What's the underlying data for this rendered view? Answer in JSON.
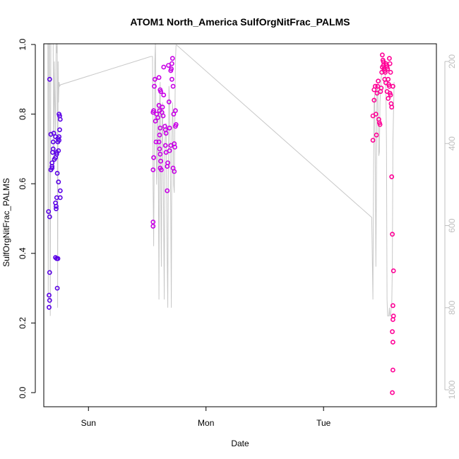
{
  "chart_data": {
    "type": "scatter",
    "title": "ATOM1 North_America SulfOrgNitFrac_PALMS",
    "xlabel": "Date",
    "ylabel": "SulfOrgNitFrac_PALMS",
    "xlim": [
      -0.38,
      2.96
    ],
    "ylim": [
      0,
      1
    ],
    "x_ticks": [
      {
        "value": 0,
        "label": "Sun"
      },
      {
        "value": 1,
        "label": "Mon"
      },
      {
        "value": 2,
        "label": "Tue"
      }
    ],
    "y_ticks": [
      {
        "value": 0,
        "label": "0.0"
      },
      {
        "value": 0.2,
        "label": "0.2"
      },
      {
        "value": 0.4,
        "label": "0.4"
      },
      {
        "value": 0.6,
        "label": "0.6"
      },
      {
        "value": 0.8,
        "label": "0.8"
      },
      {
        "value": 1,
        "label": "1.0"
      }
    ],
    "y2_ticks": [
      {
        "value": 200,
        "label": "200"
      },
      {
        "value": 400,
        "label": "400"
      },
      {
        "value": 600,
        "label": "600"
      },
      {
        "value": 800,
        "label": "800"
      },
      {
        "value": 1000,
        "label": "1000"
      }
    ],
    "y2lim": [
      1032,
      155
    ],
    "grid": false,
    "colors": {
      "early": "#5a00e6",
      "middle": "#c800e6",
      "late": "#ff0096",
      "altitude_line": "#c8c8c8"
    },
    "series": [
      {
        "values": [
          {
            "x": -0.33,
            "y": 0.9
          },
          {
            "x": -0.34,
            "y": 0.52
          },
          {
            "x": -0.33,
            "y": 0.505
          },
          {
            "x": -0.33,
            "y": 0.345
          },
          {
            "x": -0.335,
            "y": 0.28
          },
          {
            "x": -0.33,
            "y": 0.265
          },
          {
            "x": -0.335,
            "y": 0.245
          },
          {
            "x": -0.32,
            "y": 0.742
          },
          {
            "x": -0.31,
            "y": 0.66
          },
          {
            "x": -0.305,
            "y": 0.69
          },
          {
            "x": -0.3,
            "y": 0.7
          },
          {
            "x": -0.3,
            "y": 0.72
          },
          {
            "x": -0.31,
            "y": 0.65
          },
          {
            "x": -0.31,
            "y": 0.645
          },
          {
            "x": -0.32,
            "y": 0.64
          },
          {
            "x": -0.295,
            "y": 0.745
          },
          {
            "x": -0.29,
            "y": 0.67
          },
          {
            "x": -0.28,
            "y": 0.675
          },
          {
            "x": -0.28,
            "y": 0.735
          },
          {
            "x": -0.27,
            "y": 0.685
          },
          {
            "x": -0.27,
            "y": 0.69
          },
          {
            "x": -0.265,
            "y": 0.63
          },
          {
            "x": -0.28,
            "y": 0.545
          },
          {
            "x": -0.275,
            "y": 0.535
          },
          {
            "x": -0.275,
            "y": 0.528
          },
          {
            "x": -0.28,
            "y": 0.388
          },
          {
            "x": -0.27,
            "y": 0.385
          },
          {
            "x": -0.26,
            "y": 0.385
          },
          {
            "x": -0.265,
            "y": 0.3
          },
          {
            "x": -0.27,
            "y": 0.56
          },
          {
            "x": -0.26,
            "y": 0.72
          },
          {
            "x": -0.26,
            "y": 0.73
          },
          {
            "x": -0.255,
            "y": 0.695
          },
          {
            "x": -0.25,
            "y": 0.8
          },
          {
            "x": -0.245,
            "y": 0.795
          },
          {
            "x": -0.24,
            "y": 0.785
          },
          {
            "x": -0.245,
            "y": 0.755
          },
          {
            "x": -0.25,
            "y": 0.735
          },
          {
            "x": -0.25,
            "y": 0.725
          },
          {
            "x": -0.255,
            "y": 0.605
          },
          {
            "x": -0.24,
            "y": 0.58
          },
          {
            "x": -0.24,
            "y": 0.56
          }
        ]
      },
      {
        "values": [
          {
            "x": 0.55,
            "y": 0.49
          },
          {
            "x": 0.55,
            "y": 0.478
          },
          {
            "x": 0.55,
            "y": 0.805
          },
          {
            "x": 0.555,
            "y": 0.81
          },
          {
            "x": 0.56,
            "y": 0.88
          },
          {
            "x": 0.565,
            "y": 0.9
          },
          {
            "x": 0.555,
            "y": 0.675
          },
          {
            "x": 0.55,
            "y": 0.64
          },
          {
            "x": 0.57,
            "y": 0.78
          },
          {
            "x": 0.575,
            "y": 0.72
          },
          {
            "x": 0.58,
            "y": 0.8
          },
          {
            "x": 0.59,
            "y": 0.79
          },
          {
            "x": 0.6,
            "y": 0.905
          },
          {
            "x": 0.6,
            "y": 0.825
          },
          {
            "x": 0.605,
            "y": 0.81
          },
          {
            "x": 0.61,
            "y": 0.87
          },
          {
            "x": 0.615,
            "y": 0.865
          },
          {
            "x": 0.61,
            "y": 0.76
          },
          {
            "x": 0.605,
            "y": 0.74
          },
          {
            "x": 0.6,
            "y": 0.72
          },
          {
            "x": 0.605,
            "y": 0.7
          },
          {
            "x": 0.61,
            "y": 0.685
          },
          {
            "x": 0.615,
            "y": 0.665
          },
          {
            "x": 0.61,
            "y": 0.645
          },
          {
            "x": 0.62,
            "y": 0.64
          },
          {
            "x": 0.625,
            "y": 0.805
          },
          {
            "x": 0.63,
            "y": 0.82
          },
          {
            "x": 0.635,
            "y": 0.795
          },
          {
            "x": 0.64,
            "y": 0.855
          },
          {
            "x": 0.64,
            "y": 0.935
          },
          {
            "x": 0.65,
            "y": 0.765
          },
          {
            "x": 0.655,
            "y": 0.755
          },
          {
            "x": 0.66,
            "y": 0.745
          },
          {
            "x": 0.655,
            "y": 0.71
          },
          {
            "x": 0.66,
            "y": 0.69
          },
          {
            "x": 0.67,
            "y": 0.65
          },
          {
            "x": 0.675,
            "y": 0.66
          },
          {
            "x": 0.67,
            "y": 0.58
          },
          {
            "x": 0.68,
            "y": 0.94
          },
          {
            "x": 0.685,
            "y": 0.835
          },
          {
            "x": 0.69,
            "y": 0.76
          },
          {
            "x": 0.69,
            "y": 0.695
          },
          {
            "x": 0.7,
            "y": 0.71
          },
          {
            "x": 0.7,
            "y": 0.925
          },
          {
            "x": 0.705,
            "y": 0.93
          },
          {
            "x": 0.71,
            "y": 0.945
          },
          {
            "x": 0.715,
            "y": 0.96
          },
          {
            "x": 0.71,
            "y": 0.9
          },
          {
            "x": 0.72,
            "y": 0.88
          },
          {
            "x": 0.725,
            "y": 0.8
          },
          {
            "x": 0.72,
            "y": 0.645
          },
          {
            "x": 0.73,
            "y": 0.635
          },
          {
            "x": 0.73,
            "y": 0.715
          },
          {
            "x": 0.735,
            "y": 0.705
          },
          {
            "x": 0.74,
            "y": 0.765
          },
          {
            "x": 0.745,
            "y": 0.77
          },
          {
            "x": 0.74,
            "y": 0.81
          }
        ]
      },
      {
        "values": [
          {
            "x": 2.42,
            "y": 0.725
          },
          {
            "x": 2.42,
            "y": 0.795
          },
          {
            "x": 2.43,
            "y": 0.84
          },
          {
            "x": 2.43,
            "y": 0.87
          },
          {
            "x": 2.44,
            "y": 0.88
          },
          {
            "x": 2.445,
            "y": 0.8
          },
          {
            "x": 2.45,
            "y": 0.74
          },
          {
            "x": 2.455,
            "y": 0.86
          },
          {
            "x": 2.46,
            "y": 0.88
          },
          {
            "x": 2.465,
            "y": 0.895
          },
          {
            "x": 2.47,
            "y": 0.785
          },
          {
            "x": 2.475,
            "y": 0.775
          },
          {
            "x": 2.48,
            "y": 0.77
          },
          {
            "x": 2.485,
            "y": 0.865
          },
          {
            "x": 2.49,
            "y": 0.875
          },
          {
            "x": 2.495,
            "y": 0.92
          },
          {
            "x": 2.5,
            "y": 0.935
          },
          {
            "x": 2.505,
            "y": 0.955
          },
          {
            "x": 2.51,
            "y": 0.94
          },
          {
            "x": 2.515,
            "y": 0.93
          },
          {
            "x": 2.52,
            "y": 0.925
          },
          {
            "x": 2.525,
            "y": 0.92
          },
          {
            "x": 2.53,
            "y": 0.945
          },
          {
            "x": 2.535,
            "y": 0.94
          },
          {
            "x": 2.54,
            "y": 0.935
          },
          {
            "x": 2.545,
            "y": 0.93
          },
          {
            "x": 2.55,
            "y": 0.9
          },
          {
            "x": 2.555,
            "y": 0.885
          },
          {
            "x": 2.56,
            "y": 0.88
          },
          {
            "x": 2.565,
            "y": 0.86
          },
          {
            "x": 2.57,
            "y": 0.855
          },
          {
            "x": 2.5,
            "y": 0.97
          },
          {
            "x": 2.51,
            "y": 0.95
          },
          {
            "x": 2.52,
            "y": 0.9
          },
          {
            "x": 2.53,
            "y": 0.89
          },
          {
            "x": 2.54,
            "y": 0.865
          },
          {
            "x": 2.55,
            "y": 0.845
          },
          {
            "x": 2.56,
            "y": 0.96
          },
          {
            "x": 2.565,
            "y": 0.945
          },
          {
            "x": 2.57,
            "y": 0.92
          },
          {
            "x": 2.575,
            "y": 0.83
          },
          {
            "x": 2.58,
            "y": 0.82
          },
          {
            "x": 2.59,
            "y": 0.88
          },
          {
            "x": 2.58,
            "y": 0.62
          },
          {
            "x": 2.585,
            "y": 0.455
          },
          {
            "x": 2.595,
            "y": 0.35
          },
          {
            "x": 2.59,
            "y": 0.25
          },
          {
            "x": 2.595,
            "y": 0.22
          },
          {
            "x": 2.59,
            "y": 0.21
          },
          {
            "x": 2.585,
            "y": 0.175
          },
          {
            "x": 2.59,
            "y": 0.145
          },
          {
            "x": 2.59,
            "y": 0.065
          },
          {
            "x": 2.585,
            "y": 0.0
          }
        ]
      }
    ],
    "altitude_trace": [
      {
        "x": -0.38,
        "alt": 155
      },
      {
        "x": -0.345,
        "alt": 155
      },
      {
        "x": -0.342,
        "alt": 780
      },
      {
        "x": -0.338,
        "alt": 155
      },
      {
        "x": -0.33,
        "alt": 155
      },
      {
        "x": -0.325,
        "alt": 820
      },
      {
        "x": -0.32,
        "alt": 155
      },
      {
        "x": -0.3,
        "alt": 155
      },
      {
        "x": -0.295,
        "alt": 460
      },
      {
        "x": -0.29,
        "alt": 200
      },
      {
        "x": -0.285,
        "alt": 300
      },
      {
        "x": -0.28,
        "alt": 380
      },
      {
        "x": -0.275,
        "alt": 155
      },
      {
        "x": -0.27,
        "alt": 180
      },
      {
        "x": -0.265,
        "alt": 155
      },
      {
        "x": -0.262,
        "alt": 800
      },
      {
        "x": -0.258,
        "alt": 200
      },
      {
        "x": -0.255,
        "alt": 300
      },
      {
        "x": -0.25,
        "alt": 250
      },
      {
        "x": -0.245,
        "alt": 260
      },
      {
        "x": -0.238,
        "alt": 257
      },
      {
        "x": 0.53,
        "alt": 188
      },
      {
        "x": 0.545,
        "alt": 188
      },
      {
        "x": 0.55,
        "alt": 500
      },
      {
        "x": 0.555,
        "alt": 650
      },
      {
        "x": 0.56,
        "alt": 400
      },
      {
        "x": 0.565,
        "alt": 200
      },
      {
        "x": 0.57,
        "alt": 155
      },
      {
        "x": 0.575,
        "alt": 400
      },
      {
        "x": 0.58,
        "alt": 500
      },
      {
        "x": 0.585,
        "alt": 420
      },
      {
        "x": 0.59,
        "alt": 300
      },
      {
        "x": 0.595,
        "alt": 500
      },
      {
        "x": 0.6,
        "alt": 780
      },
      {
        "x": 0.605,
        "alt": 300
      },
      {
        "x": 0.61,
        "alt": 250
      },
      {
        "x": 0.615,
        "alt": 500
      },
      {
        "x": 0.62,
        "alt": 700
      },
      {
        "x": 0.625,
        "alt": 380
      },
      {
        "x": 0.63,
        "alt": 300
      },
      {
        "x": 0.64,
        "alt": 600
      },
      {
        "x": 0.645,
        "alt": 780
      },
      {
        "x": 0.65,
        "alt": 400
      },
      {
        "x": 0.66,
        "alt": 350
      },
      {
        "x": 0.665,
        "alt": 500
      },
      {
        "x": 0.67,
        "alt": 680
      },
      {
        "x": 0.675,
        "alt": 800
      },
      {
        "x": 0.68,
        "alt": 400
      },
      {
        "x": 0.685,
        "alt": 260
      },
      {
        "x": 0.69,
        "alt": 300
      },
      {
        "x": 0.7,
        "alt": 550
      },
      {
        "x": 0.705,
        "alt": 800
      },
      {
        "x": 0.71,
        "alt": 400
      },
      {
        "x": 0.715,
        "alt": 300
      },
      {
        "x": 0.72,
        "alt": 350
      },
      {
        "x": 0.725,
        "alt": 500
      },
      {
        "x": 0.73,
        "alt": 520
      },
      {
        "x": 0.735,
        "alt": 350
      },
      {
        "x": 0.74,
        "alt": 200
      },
      {
        "x": 0.745,
        "alt": 160
      },
      {
        "x": 0.75,
        "alt": 160
      },
      {
        "x": 2.41,
        "alt": 580
      },
      {
        "x": 2.42,
        "alt": 780
      },
      {
        "x": 2.425,
        "alt": 500
      },
      {
        "x": 2.43,
        "alt": 300
      },
      {
        "x": 2.435,
        "alt": 280
      },
      {
        "x": 2.44,
        "alt": 430
      },
      {
        "x": 2.445,
        "alt": 700
      },
      {
        "x": 2.45,
        "alt": 500
      },
      {
        "x": 2.455,
        "alt": 260
      },
      {
        "x": 2.46,
        "alt": 260
      },
      {
        "x": 2.47,
        "alt": 430
      },
      {
        "x": 2.475,
        "alt": 420
      },
      {
        "x": 2.48,
        "alt": 300
      },
      {
        "x": 2.49,
        "alt": 240
      },
      {
        "x": 2.5,
        "alt": 220
      },
      {
        "x": 2.52,
        "alt": 220
      },
      {
        "x": 2.53,
        "alt": 250
      },
      {
        "x": 2.535,
        "alt": 400
      },
      {
        "x": 2.54,
        "alt": 780
      },
      {
        "x": 2.545,
        "alt": 820
      },
      {
        "x": 2.555,
        "alt": 820
      },
      {
        "x": 2.56,
        "alt": 800
      },
      {
        "x": 2.565,
        "alt": 820
      },
      {
        "x": 2.57,
        "alt": 820
      },
      {
        "x": 2.575,
        "alt": 800
      },
      {
        "x": 2.58,
        "alt": 800
      },
      {
        "x": 2.585,
        "alt": 700
      },
      {
        "x": 2.59,
        "alt": 400
      },
      {
        "x": 2.6,
        "alt": 250
      }
    ]
  }
}
